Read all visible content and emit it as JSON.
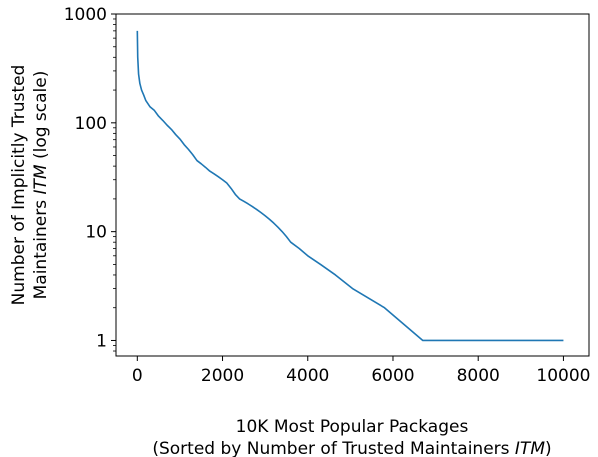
{
  "chart_data": {
    "type": "line",
    "title": "",
    "xlabel_line1": "10K Most Popular Packages",
    "xlabel_line2_prefix": "(Sorted by Number of Trusted Maintainers ",
    "xlabel_line2_em": "ITM",
    "xlabel_line2_suffix": ")",
    "ylabel_line1": "Number of Implicitly Trusted",
    "ylabel_line2_prefix": "Maintainers ",
    "ylabel_line2_em": "ITM",
    "ylabel_line2_suffix": " (log scale)",
    "xlim": [
      -500,
      10600
    ],
    "ylim": [
      0.72,
      1000
    ],
    "yscale": "log",
    "grid": false,
    "x_ticks": [
      0,
      2000,
      4000,
      6000,
      8000,
      10000
    ],
    "x_tick_labels": [
      "0",
      "2000",
      "4000",
      "6000",
      "8000",
      "10000"
    ],
    "y_ticks": [
      1,
      10,
      100,
      1000
    ],
    "y_tick_labels": [
      "1",
      "10",
      "100",
      "1000"
    ],
    "line_color": "#1f77b4",
    "series": [
      {
        "x": [
          0,
          10,
          30,
          60,
          100,
          150,
          200,
          300,
          400,
          500,
          600,
          700,
          800,
          900,
          1000,
          1100,
          1200,
          1300,
          1400,
          1500,
          1600,
          1700,
          1800,
          1900,
          2000,
          2100,
          2200,
          2300,
          2400,
          2500,
          2600,
          2700,
          2800,
          2900,
          3000,
          3100,
          3200,
          3300,
          3400,
          3500,
          3600,
          3800,
          4000,
          4300,
          4650,
          5050,
          5800,
          6700,
          8000,
          10000
        ],
        "y": [
          700,
          400,
          280,
          230,
          200,
          180,
          160,
          140,
          130,
          115,
          105,
          95,
          87,
          78,
          71,
          63,
          57,
          51,
          45,
          42,
          39,
          36,
          34,
          32,
          30,
          28,
          25,
          22,
          20,
          19,
          18,
          17,
          16,
          15,
          14,
          13,
          12,
          11,
          10,
          9,
          8,
          7,
          6,
          5,
          4,
          3,
          2,
          1,
          1,
          1
        ]
      }
    ]
  }
}
